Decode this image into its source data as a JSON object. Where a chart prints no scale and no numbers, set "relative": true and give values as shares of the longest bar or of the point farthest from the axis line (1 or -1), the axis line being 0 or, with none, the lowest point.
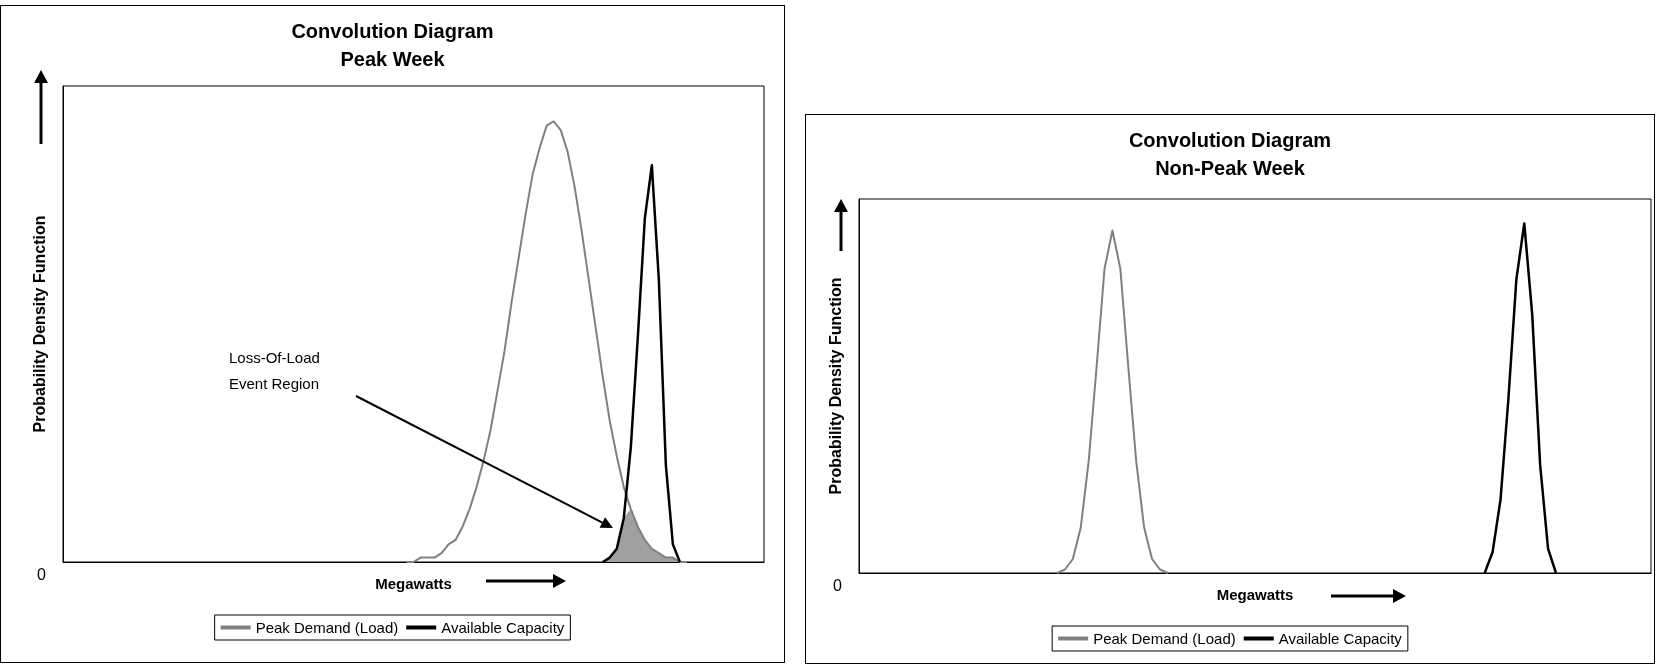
{
  "chart_data": [
    {
      "type": "line",
      "title": "Convolution Diagram",
      "subtitle": "Peak Week",
      "xlabel": "Megawatts",
      "ylabel": "Probability Density Function",
      "relative": true,
      "legend": "bottom",
      "annotations": [
        "0",
        "Loss-Of-Load Event Region"
      ],
      "categories": [
        null,
        null,
        null,
        null,
        null,
        null,
        null,
        null,
        null,
        null,
        null,
        null,
        null,
        null,
        null,
        null,
        null,
        null,
        null,
        null,
        null,
        null,
        null,
        null,
        null,
        null,
        null,
        null,
        null,
        null,
        null,
        null,
        null,
        null,
        null,
        null,
        null,
        null,
        null,
        null,
        null,
        null,
        null,
        null,
        null,
        null,
        null,
        null,
        null,
        null,
        null,
        null,
        null,
        null,
        null,
        null,
        null,
        null,
        null,
        null,
        null,
        null,
        null,
        null,
        null,
        null,
        null,
        null,
        null,
        null,
        null,
        null,
        null,
        null,
        null,
        null,
        null,
        null,
        null,
        null,
        null,
        null,
        null,
        null,
        null,
        null,
        null,
        null,
        null,
        null,
        null,
        null,
        null,
        null,
        null,
        null,
        null,
        null,
        null,
        null,
        null
      ],
      "series": [
        {
          "name": "Peak Demand (Load)",
          "color": "#808080",
          "values": [
            null,
            null,
            null,
            null,
            null,
            null,
            null,
            null,
            null,
            null,
            null,
            null,
            null,
            null,
            null,
            null,
            null,
            null,
            null,
            null,
            null,
            null,
            null,
            null,
            null,
            null,
            null,
            null,
            null,
            null,
            null,
            null,
            null,
            null,
            null,
            null,
            null,
            null,
            null,
            null,
            null,
            null,
            null,
            null,
            null,
            null,
            null,
            null,
            null,
            0,
            0,
            0.01,
            0.01,
            0.01,
            0.02,
            0.04,
            0.05,
            0.08,
            0.12,
            0.17,
            0.23,
            0.3,
            0.39,
            0.48,
            0.59,
            0.69,
            0.79,
            0.88,
            0.94,
            0.99,
            1,
            0.98,
            0.93,
            0.85,
            0.75,
            0.64,
            0.53,
            0.42,
            0.32,
            0.24,
            0.17,
            0.12,
            0.08,
            0.05,
            0.03,
            0.02,
            0.01,
            0.01,
            0,
            0,
            null,
            null,
            null,
            null,
            null,
            null,
            null,
            null,
            null,
            null,
            null
          ]
        },
        {
          "name": "Available Capacity",
          "color": "#000000",
          "values": [
            null,
            null,
            null,
            null,
            null,
            null,
            null,
            null,
            null,
            null,
            null,
            null,
            null,
            null,
            null,
            null,
            null,
            null,
            null,
            null,
            null,
            null,
            null,
            null,
            null,
            null,
            null,
            null,
            null,
            null,
            null,
            null,
            null,
            null,
            null,
            null,
            null,
            null,
            null,
            null,
            null,
            null,
            null,
            null,
            null,
            null,
            null,
            null,
            null,
            null,
            null,
            null,
            null,
            null,
            null,
            null,
            null,
            null,
            null,
            null,
            null,
            null,
            null,
            null,
            null,
            null,
            null,
            null,
            null,
            null,
            null,
            null,
            null,
            null,
            null,
            null,
            null,
            0,
            0.01,
            0.03,
            0.1,
            0.26,
            0.51,
            0.78,
            0.9,
            0.64,
            0.22,
            0.04,
            0,
            null,
            null,
            null,
            null,
            null,
            null,
            null,
            null,
            null,
            null,
            null,
            null
          ]
        },
        {
          "type": "area",
          "color": "#a0a0a0",
          "values": [
            null,
            null,
            null,
            null,
            null,
            null,
            null,
            null,
            null,
            null,
            null,
            null,
            null,
            null,
            null,
            null,
            null,
            null,
            null,
            null,
            null,
            null,
            null,
            null,
            null,
            null,
            null,
            null,
            null,
            null,
            null,
            null,
            null,
            null,
            null,
            null,
            null,
            null,
            null,
            null,
            null,
            null,
            null,
            null,
            null,
            null,
            null,
            null,
            null,
            null,
            null,
            null,
            null,
            null,
            null,
            null,
            null,
            null,
            null,
            null,
            null,
            null,
            null,
            null,
            null,
            null,
            null,
            null,
            null,
            null,
            null,
            null,
            null,
            null,
            null,
            null,
            null,
            0,
            0.01,
            0.03,
            0.1,
            0.12,
            0.08,
            0.05,
            0.03,
            0.02,
            0.01,
            0.01,
            0,
            null,
            null,
            null,
            null,
            null,
            null,
            null,
            null,
            null,
            null,
            null,
            null
          ]
        }
      ]
    },
    {
      "type": "line",
      "title": "Convolution Diagram",
      "subtitle": "Non-Peak Week",
      "xlabel": "Megawatts",
      "ylabel": "Probability Density Function",
      "relative": true,
      "legend": "bottom",
      "annotations": [
        "0"
      ],
      "categories": [
        null,
        null,
        null,
        null,
        null,
        null,
        null,
        null,
        null,
        null,
        null,
        null,
        null,
        null,
        null,
        null,
        null,
        null,
        null,
        null,
        null,
        null,
        null,
        null,
        null,
        null,
        null,
        null,
        null,
        null,
        null,
        null,
        null,
        null,
        null,
        null,
        null,
        null,
        null,
        null,
        null,
        null,
        null,
        null,
        null,
        null,
        null,
        null,
        null,
        null,
        null,
        null,
        null,
        null,
        null,
        null,
        null,
        null,
        null,
        null,
        null,
        null,
        null,
        null,
        null,
        null,
        null,
        null,
        null,
        null,
        null,
        null,
        null,
        null,
        null,
        null,
        null,
        null,
        null,
        null,
        null,
        null,
        null,
        null,
        null,
        null,
        null,
        null,
        null,
        null,
        null,
        null,
        null,
        null,
        null,
        null,
        null,
        null,
        null,
        null,
        null
      ],
      "series": [
        {
          "name": "Peak Demand (Load)",
          "color": "#808080",
          "values": [
            null,
            null,
            null,
            null,
            null,
            null,
            null,
            null,
            null,
            null,
            null,
            null,
            null,
            null,
            null,
            null,
            null,
            null,
            null,
            null,
            null,
            null,
            null,
            null,
            null,
            0,
            0.01,
            0.04,
            0.13,
            0.32,
            0.59,
            0.87,
            0.98,
            0.87,
            0.59,
            0.32,
            0.13,
            0.04,
            0.01,
            0,
            null,
            null,
            null,
            null,
            null,
            null,
            null,
            null,
            null,
            null,
            null,
            null,
            null,
            null,
            null,
            null,
            null,
            null,
            null,
            null,
            null,
            null,
            null,
            null,
            null,
            null,
            null,
            null,
            null,
            null,
            null,
            null,
            null,
            null,
            null,
            null,
            null,
            null,
            null,
            null,
            null,
            null,
            null,
            null,
            null,
            null,
            null,
            null,
            null,
            null,
            null,
            null,
            null,
            null,
            null,
            null,
            null,
            null,
            null,
            null,
            null
          ]
        },
        {
          "name": "Available Capacity",
          "color": "#000000",
          "values": [
            null,
            null,
            null,
            null,
            null,
            null,
            null,
            null,
            null,
            null,
            null,
            null,
            null,
            null,
            null,
            null,
            null,
            null,
            null,
            null,
            null,
            null,
            null,
            null,
            null,
            null,
            null,
            null,
            null,
            null,
            null,
            null,
            null,
            null,
            null,
            null,
            null,
            null,
            null,
            null,
            null,
            null,
            null,
            null,
            null,
            null,
            null,
            null,
            null,
            null,
            null,
            null,
            null,
            null,
            null,
            null,
            null,
            null,
            null,
            null,
            null,
            null,
            null,
            null,
            null,
            null,
            null,
            null,
            null,
            null,
            null,
            null,
            null,
            null,
            null,
            null,
            null,
            null,
            null,
            0,
            0.06,
            0.21,
            0.5,
            0.84,
            1,
            0.74,
            0.31,
            0.07,
            0,
            null,
            null,
            null,
            null,
            null,
            null,
            null,
            null,
            null,
            null,
            null,
            null
          ]
        }
      ]
    }
  ]
}
